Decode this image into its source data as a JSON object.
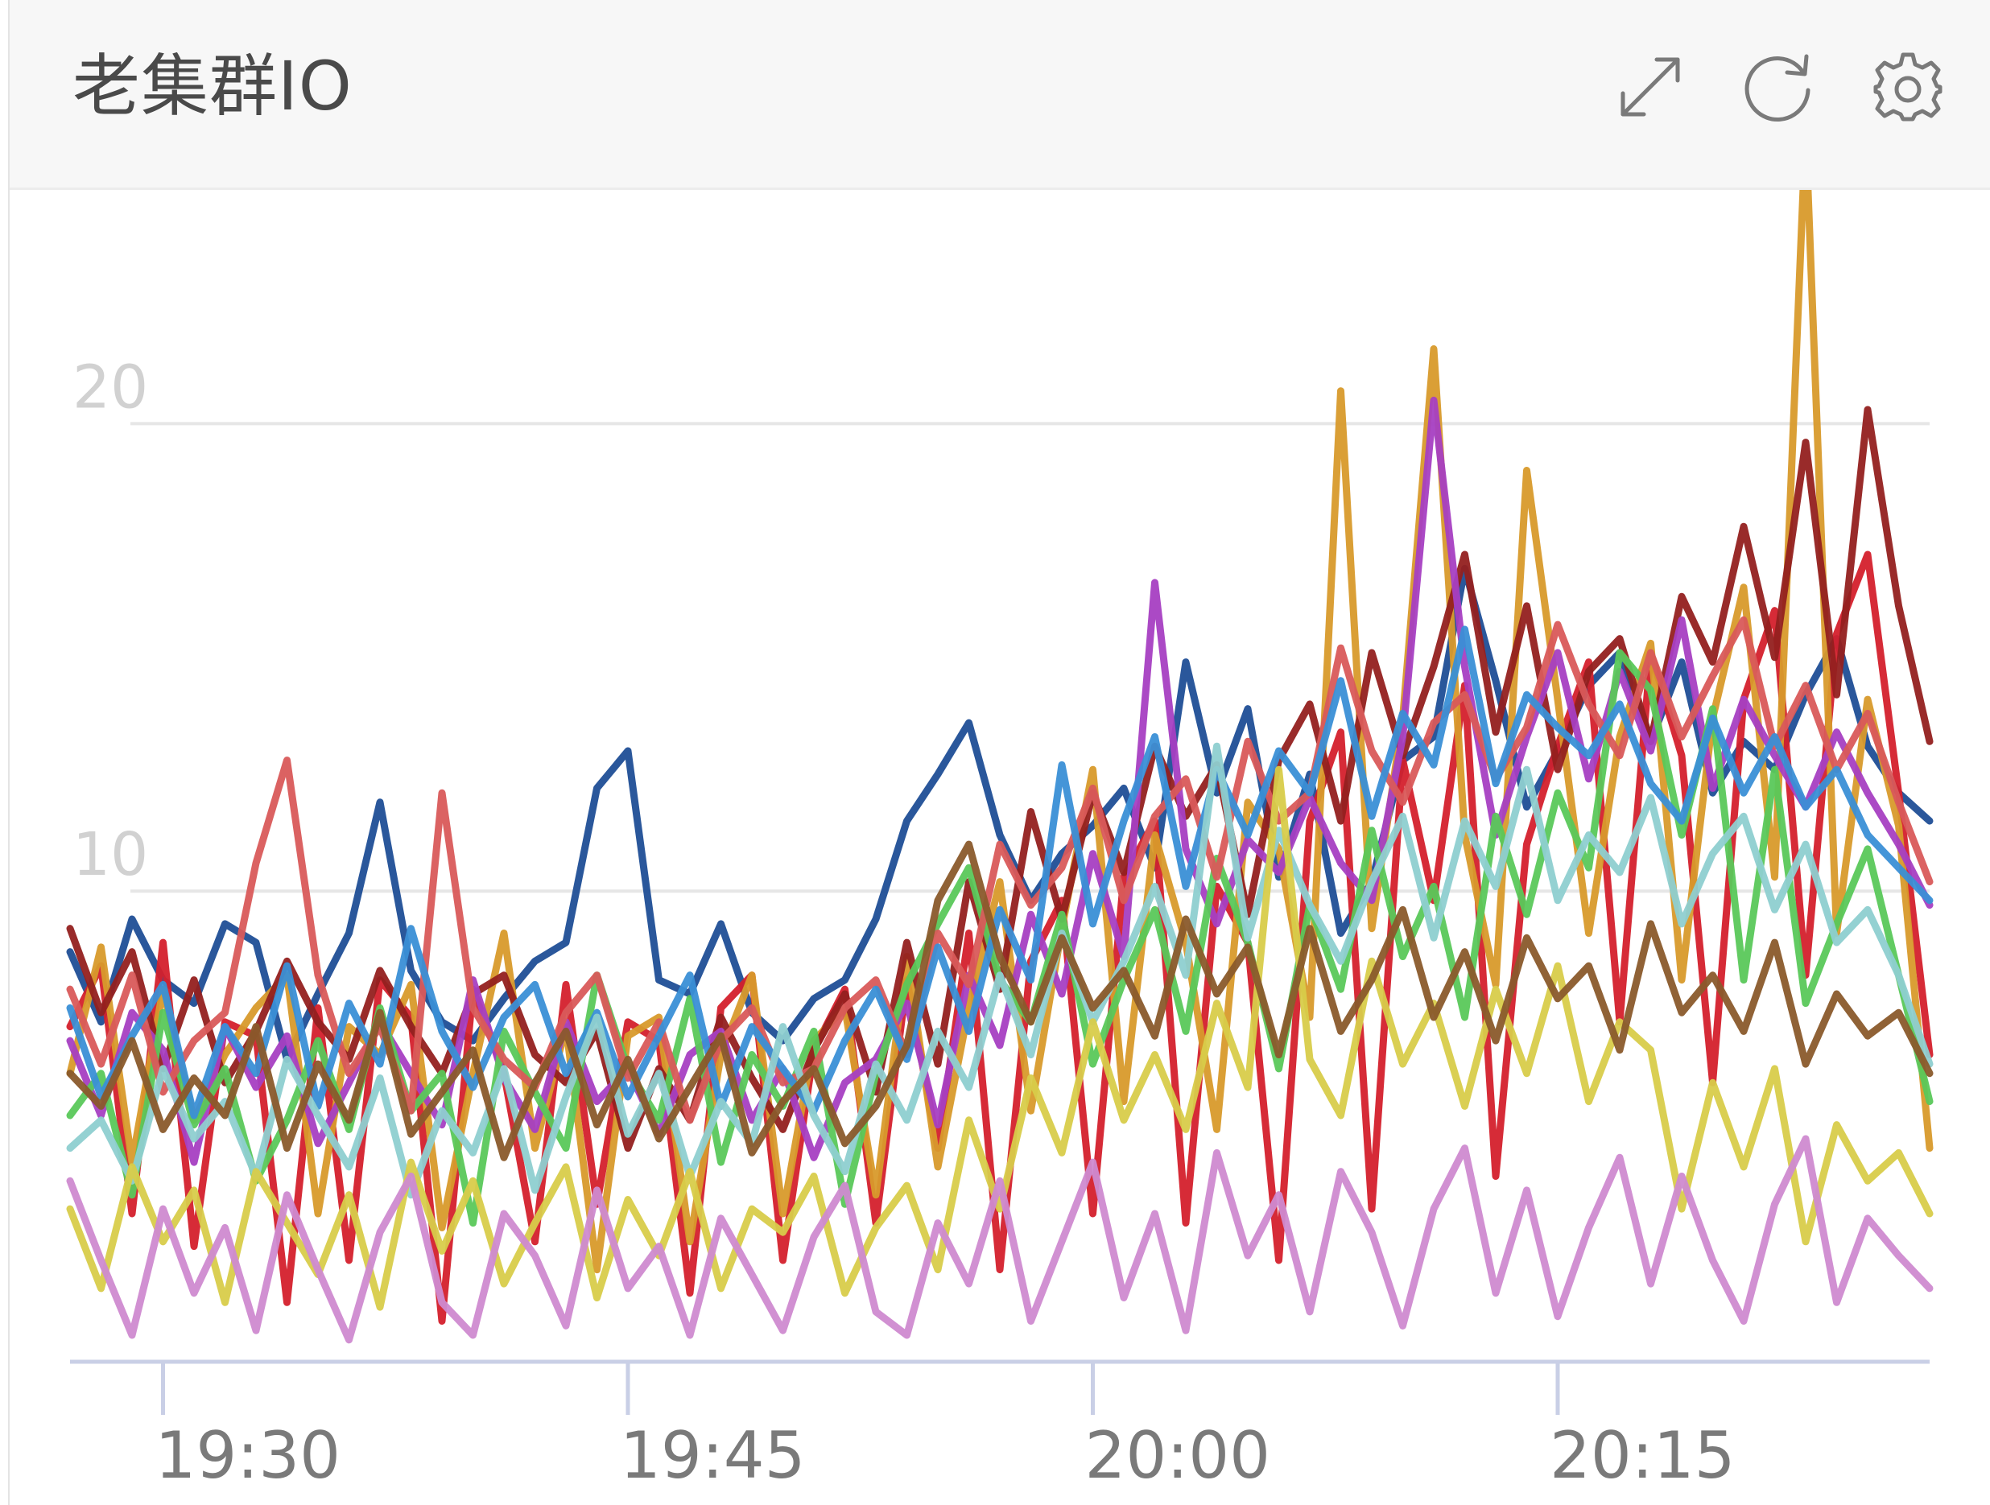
{
  "header": {
    "title": "老集群IO",
    "buttons": [
      {
        "icon": "fullscreen-icon"
      },
      {
        "icon": "refresh-icon"
      },
      {
        "icon": "settings-icon"
      }
    ]
  },
  "chart_data": {
    "type": "line",
    "title": "老集群IO",
    "xlabel": "",
    "ylabel": "",
    "x_start": "19:27",
    "x_end": "20:27",
    "xlim": [
      "19:27",
      "20:27"
    ],
    "ylim": [
      0,
      25
    ],
    "grid": true,
    "legend": "none",
    "x_ticks": [
      "19:30",
      "19:45",
      "20:00",
      "20:15"
    ],
    "y_ticks": [
      10,
      20
    ],
    "series": [
      {
        "color": "#1f4e96",
        "values": [
          8.7,
          7.2,
          9.4,
          8.1,
          7.6,
          9.3,
          8.9,
          6.4,
          7.8,
          9.1,
          11.9,
          8.3,
          7.2,
          6.8,
          7.7,
          8.5,
          8.9,
          12.2,
          13.0,
          8.1,
          7.8,
          9.3,
          7.4,
          6.8,
          7.7,
          8.1,
          9.4,
          11.5,
          12.5,
          13.6,
          11.2,
          9.8,
          10.8,
          11.4,
          12.2,
          10.5,
          14.9,
          12.1,
          13.9,
          10.3,
          12.5,
          9.1,
          10.2,
          12.8,
          13.3,
          16.9,
          14.5,
          11.8,
          13.0,
          14.4,
          15.1,
          13.2,
          14.9,
          12.1,
          13.2,
          12.6,
          14.2,
          15.4,
          13.1,
          12.1,
          11.5
        ]
      },
      {
        "color": "#d4202c",
        "values": [
          7.1,
          8.4,
          3.1,
          8.9,
          2.4,
          7.2,
          6.9,
          1.2,
          7.5,
          2.1,
          8.1,
          7.3,
          0.8,
          7.9,
          6.1,
          2.5,
          8.0,
          3.3,
          7.2,
          6.8,
          1.4,
          7.5,
          8.2,
          2.1,
          6.6,
          7.9,
          2.9,
          8.1,
          4.5,
          9.1,
          1.9,
          8.5,
          9.8,
          3.1,
          10.3,
          11.5,
          2.9,
          10.1,
          8.9,
          2.1,
          11.5,
          13.4,
          3.2,
          12.8,
          9.8,
          14.4,
          3.9,
          11.0,
          13.1,
          14.9,
          7.2,
          15.1,
          12.9,
          5.9,
          14.1,
          16.0,
          8.2,
          15.5,
          17.2,
          12.1,
          6.5
        ]
      },
      {
        "color": "#d89a2b",
        "values": [
          6.1,
          8.8,
          4.2,
          7.9,
          5.1,
          6.5,
          7.5,
          8.2,
          3.1,
          7.1,
          6.5,
          8.0,
          2.8,
          6.1,
          9.1,
          4.5,
          7.1,
          1.9,
          6.9,
          7.3,
          2.5,
          6.5,
          8.2,
          3.1,
          6.8,
          7.5,
          3.5,
          8.6,
          4.1,
          7.5,
          10.2,
          5.3,
          9.2,
          12.6,
          5.5,
          11.2,
          8.9,
          4.9,
          11.9,
          10.9,
          7.3,
          20.7,
          9.2,
          13.7,
          21.6,
          11.2,
          8.0,
          19.0,
          14.1,
          9.1,
          13.3,
          15.3,
          8.1,
          13.7,
          16.5,
          10.3,
          26.3,
          9.1,
          14.1,
          11.4,
          4.5
        ]
      },
      {
        "color": "#93201f",
        "values": [
          9.2,
          7.4,
          8.7,
          6.2,
          8.1,
          5.9,
          7.0,
          8.5,
          7.2,
          6.4,
          8.3,
          7.1,
          6.1,
          7.8,
          8.2,
          6.5,
          5.9,
          7.0,
          4.5,
          6.2,
          5.1,
          7.3,
          6.0,
          4.9,
          6.6,
          7.8,
          5.7,
          8.9,
          6.3,
          10.2,
          7.9,
          11.7,
          9.4,
          12.1,
          10.4,
          13.1,
          11.6,
          12.7,
          9.5,
          12.8,
          14.0,
          11.5,
          15.1,
          12.9,
          14.8,
          17.2,
          13.4,
          16.1,
          12.6,
          14.7,
          15.4,
          13.2,
          16.3,
          14.9,
          17.8,
          15.0,
          19.6,
          14.2,
          20.3,
          16.1,
          13.2
        ]
      },
      {
        "color": "#a63fc2",
        "values": [
          6.8,
          5.2,
          7.4,
          6.6,
          4.2,
          7.1,
          5.8,
          6.9,
          4.6,
          5.9,
          7.2,
          6.1,
          5.0,
          8.1,
          6.0,
          4.9,
          7.2,
          5.5,
          6.2,
          4.8,
          6.5,
          7.0,
          5.1,
          6.2,
          4.3,
          5.9,
          6.4,
          7.6,
          5.0,
          8.2,
          6.7,
          9.5,
          7.8,
          10.8,
          8.6,
          16.6,
          10.9,
          9.3,
          11.1,
          10.4,
          12.0,
          10.6,
          9.8,
          13.3,
          20.5,
          14.8,
          11.2,
          13.3,
          15.1,
          12.4,
          14.7,
          13.0,
          15.8,
          12.2,
          14.1,
          12.9,
          11.8,
          13.4,
          12.1,
          11.0,
          9.7
        ]
      },
      {
        "color": "#5ac85a",
        "values": [
          5.2,
          6.1,
          3.5,
          7.4,
          5.0,
          6.2,
          3.8,
          5.1,
          6.8,
          4.9,
          7.5,
          5.3,
          6.1,
          2.9,
          7.0,
          5.7,
          4.5,
          8.2,
          6.2,
          5.1,
          7.7,
          4.2,
          6.5,
          5.4,
          7.0,
          3.3,
          6.1,
          8.0,
          9.3,
          10.5,
          8.1,
          7.2,
          9.5,
          6.3,
          8.1,
          9.6,
          7.0,
          10.7,
          8.9,
          6.2,
          9.7,
          7.9,
          11.3,
          8.6,
          10.1,
          7.3,
          11.6,
          9.5,
          12.1,
          10.5,
          15.1,
          14.3,
          11.2,
          13.9,
          8.1,
          12.6,
          7.6,
          9.3,
          10.9,
          8.2,
          5.5
        ]
      },
      {
        "color": "#d95a5a",
        "values": [
          7.9,
          6.3,
          8.2,
          5.7,
          6.8,
          7.4,
          10.6,
          12.8,
          8.2,
          6.1,
          7.1,
          5.3,
          12.1,
          7.5,
          6.4,
          5.8,
          7.4,
          8.2,
          6.0,
          7.2,
          5.1,
          6.8,
          7.5,
          5.9,
          6.2,
          7.5,
          8.1,
          6.5,
          9.1,
          8.0,
          11.0,
          9.7,
          10.5,
          12.2,
          9.8,
          11.6,
          12.4,
          10.3,
          13.2,
          11.5,
          12.1,
          15.2,
          13.0,
          11.9,
          13.6,
          14.2,
          12.4,
          13.5,
          15.7,
          14.0,
          12.9,
          15.1,
          13.3,
          14.6,
          15.8,
          13.1,
          14.4,
          12.6,
          13.8,
          11.9,
          10.2
        ]
      },
      {
        "color": "#3a8fd6",
        "values": [
          7.5,
          5.6,
          6.9,
          8.0,
          5.2,
          7.1,
          6.1,
          8.4,
          5.4,
          7.6,
          6.3,
          9.2,
          7.0,
          5.8,
          7.3,
          8.0,
          6.1,
          7.4,
          5.6,
          6.9,
          8.2,
          5.4,
          7.1,
          6.2,
          5.3,
          6.8,
          7.9,
          6.4,
          8.8,
          7.0,
          9.6,
          8.1,
          12.7,
          9.3,
          11.5,
          13.3,
          10.1,
          12.6,
          11.2,
          13.0,
          12.1,
          14.5,
          11.6,
          13.8,
          12.7,
          15.6,
          12.3,
          14.2,
          13.5,
          12.9,
          14.0,
          12.3,
          11.5,
          13.7,
          12.1,
          13.3,
          11.8,
          12.6,
          11.2,
          10.5,
          9.8
        ]
      },
      {
        "color": "#8ecfd0",
        "values": [
          4.5,
          5.1,
          3.8,
          6.2,
          4.7,
          5.5,
          3.9,
          6.4,
          5.2,
          4.1,
          6.0,
          3.5,
          5.3,
          4.4,
          6.2,
          3.6,
          5.6,
          7.3,
          4.8,
          6.1,
          3.9,
          5.5,
          4.6,
          7.1,
          5.2,
          4.0,
          6.3,
          5.1,
          7.0,
          5.8,
          8.2,
          6.5,
          9.1,
          7.2,
          8.5,
          10.1,
          8.2,
          13.1,
          9.0,
          11.3,
          9.7,
          8.5,
          10.2,
          11.6,
          9.0,
          11.5,
          10.1,
          12.6,
          9.8,
          11.2,
          10.4,
          12.0,
          9.3,
          10.8,
          11.6,
          9.6,
          11.0,
          8.9,
          9.6,
          8.2,
          6.3
        ]
      },
      {
        "color": "#d8cc4a",
        "values": [
          3.2,
          1.5,
          4.1,
          2.5,
          3.6,
          1.2,
          4.0,
          2.9,
          1.8,
          3.5,
          1.1,
          4.2,
          2.3,
          3.8,
          1.6,
          2.9,
          4.1,
          1.3,
          3.4,
          2.2,
          4.0,
          1.5,
          3.2,
          2.7,
          3.9,
          1.4,
          2.8,
          3.7,
          1.9,
          5.1,
          3.2,
          6.0,
          4.4,
          7.2,
          5.1,
          6.5,
          4.9,
          7.6,
          5.8,
          12.6,
          6.4,
          5.2,
          8.5,
          6.3,
          7.6,
          5.4,
          7.9,
          6.1,
          8.4,
          5.5,
          7.2,
          6.6,
          3.2,
          5.9,
          4.1,
          6.2,
          2.5,
          5.0,
          3.8,
          4.4,
          3.1
        ]
      },
      {
        "color": "#cf8ad0",
        "values": [
          3.8,
          2.1,
          0.5,
          3.2,
          1.4,
          2.8,
          0.6,
          3.5,
          1.9,
          0.4,
          2.7,
          3.9,
          1.2,
          0.5,
          3.1,
          2.2,
          0.7,
          3.6,
          1.5,
          2.4,
          0.5,
          3.0,
          1.8,
          0.6,
          2.6,
          3.7,
          1.0,
          0.5,
          2.9,
          1.6,
          3.8,
          0.8,
          2.5,
          4.2,
          1.3,
          3.1,
          0.6,
          4.4,
          2.2,
          3.5,
          1.0,
          4.0,
          2.7,
          0.7,
          3.2,
          4.5,
          1.4,
          3.6,
          0.9,
          2.8,
          4.3,
          1.6,
          3.9,
          2.1,
          0.8,
          3.3,
          4.7,
          1.2,
          3.0,
          2.2,
          1.5
        ]
      },
      {
        "color": "#8a5a2b",
        "values": [
          6.1,
          5.4,
          6.8,
          4.9,
          6.0,
          5.2,
          7.1,
          4.5,
          6.3,
          5.1,
          7.4,
          4.8,
          5.7,
          6.6,
          4.3,
          5.9,
          7.0,
          5.0,
          6.4,
          4.7,
          5.8,
          6.9,
          4.4,
          5.5,
          6.2,
          4.6,
          5.4,
          6.7,
          9.8,
          11.0,
          8.6,
          7.2,
          9.0,
          7.5,
          8.3,
          6.9,
          9.4,
          7.8,
          8.8,
          6.5,
          9.2,
          7.0,
          8.1,
          9.6,
          7.3,
          8.7,
          6.8,
          9.0,
          7.7,
          8.4,
          6.6,
          9.3,
          7.4,
          8.2,
          7.0,
          8.9,
          6.3,
          7.8,
          6.9,
          7.4,
          6.1
        ]
      }
    ]
  }
}
